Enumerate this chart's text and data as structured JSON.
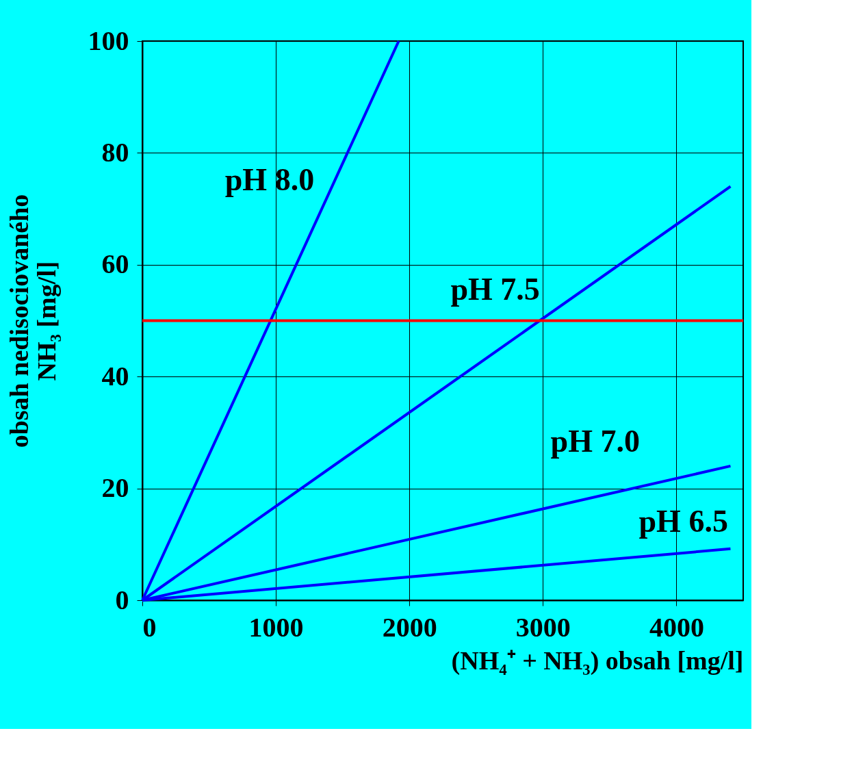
{
  "chart_data": {
    "type": "line",
    "xlabel": "(NH₄⁺ + NH₃) obsah [mg/l]",
    "ylabel": "obsah nedisociovaného\nNH₃ [mg/l]",
    "xlim": [
      0,
      4500
    ],
    "ylim": [
      0,
      100
    ],
    "xticks": [
      0,
      1000,
      2000,
      3000,
      4000
    ],
    "yticks": [
      0,
      20,
      40,
      60,
      80,
      100
    ],
    "grid": true,
    "legend": false,
    "marker": "none",
    "line_style": "solid",
    "series": [
      {
        "name": "pH 8.0",
        "color": "#0000ff",
        "x": [
          0,
          1920
        ],
        "values": [
          0,
          100
        ]
      },
      {
        "name": "pH 7.5",
        "color": "#0000ff",
        "x": [
          0,
          4405
        ],
        "values": [
          0,
          74
        ]
      },
      {
        "name": "pH 7.0",
        "color": "#0000ff",
        "x": [
          0,
          4405
        ],
        "values": [
          0,
          24
        ]
      },
      {
        "name": "pH 6.5",
        "color": "#0000ff",
        "x": [
          0,
          4405
        ],
        "values": [
          0,
          9.2
        ]
      }
    ],
    "ref_lines": [
      {
        "axis": "y",
        "value": 50,
        "color": "#ff0000",
        "line_style": "solid"
      }
    ]
  }
}
